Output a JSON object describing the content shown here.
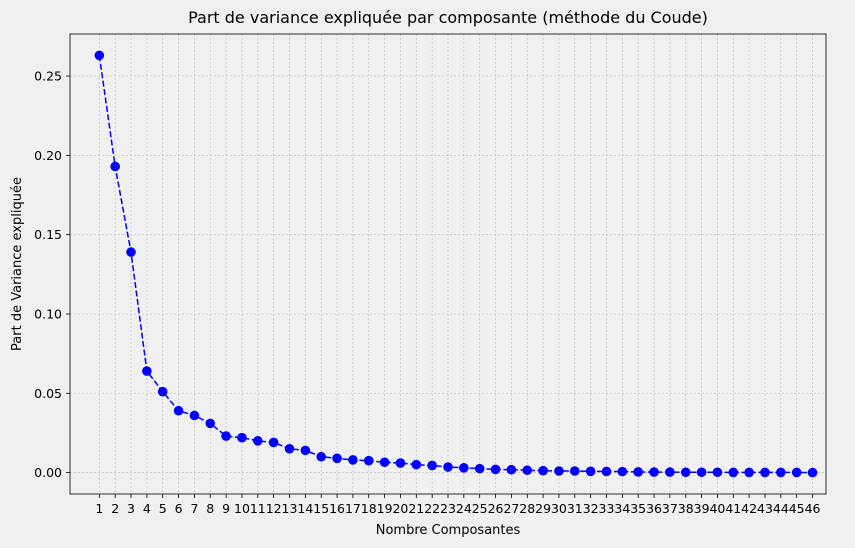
{
  "chart_data": {
    "type": "line",
    "title": "Part de variance expliquée par composante (méthode du Coude)",
    "xlabel": "Nombre Composantes",
    "ylabel": "Part de Variance expliquée",
    "x": [
      1,
      2,
      3,
      4,
      5,
      6,
      7,
      8,
      9,
      10,
      11,
      12,
      13,
      14,
      15,
      16,
      17,
      18,
      19,
      20,
      21,
      22,
      23,
      24,
      25,
      26,
      27,
      28,
      29,
      30,
      31,
      32,
      33,
      34,
      35,
      36,
      37,
      38,
      39,
      40,
      41,
      42,
      43,
      44,
      45,
      46
    ],
    "x_tick_labels": [
      "1",
      "2",
      "3",
      "4",
      "5",
      "6",
      "7",
      "8",
      "9",
      "10",
      "11",
      "12",
      "13",
      "14",
      "15",
      "16",
      "17",
      "18",
      "19",
      "20",
      "21",
      "22",
      "23",
      "24",
      "25",
      "26",
      "27",
      "28",
      "29",
      "30",
      "31",
      "32",
      "33",
      "34",
      "35",
      "36",
      "37",
      "38",
      "39",
      "40",
      "41",
      "42",
      "43",
      "44",
      "45",
      "46"
    ],
    "values": [
      0.263,
      0.193,
      0.139,
      0.064,
      0.051,
      0.039,
      0.036,
      0.031,
      0.023,
      0.022,
      0.02,
      0.019,
      0.015,
      0.014,
      0.01,
      0.009,
      0.008,
      0.0075,
      0.0065,
      0.006,
      0.005,
      0.0045,
      0.0035,
      0.003,
      0.0025,
      0.002,
      0.0018,
      0.0015,
      0.0012,
      0.001,
      0.001,
      0.0008,
      0.0007,
      0.0006,
      0.0004,
      0.0003,
      0.0003,
      0.0002,
      0.0002,
      0.0002,
      0.0001,
      0.0001,
      0.0001,
      0.0001,
      0.0001,
      0.0
    ],
    "y_ticks": [
      0.0,
      0.05,
      0.1,
      0.15,
      0.2,
      0.25
    ],
    "y_tick_labels": [
      "0.00",
      "0.05",
      "0.10",
      "0.15",
      "0.20",
      "0.25"
    ],
    "ylim": [
      -0.0135,
      0.2765
    ],
    "xlim": [
      -0.85,
      46.85
    ],
    "grid": true,
    "line_style": "dashed",
    "marker": "circle",
    "colors": {
      "line": "#0000ff",
      "marker": "#0000ff",
      "grid": "#c4c4c4",
      "background": "#f0f0f0",
      "axes": "#000000"
    }
  }
}
